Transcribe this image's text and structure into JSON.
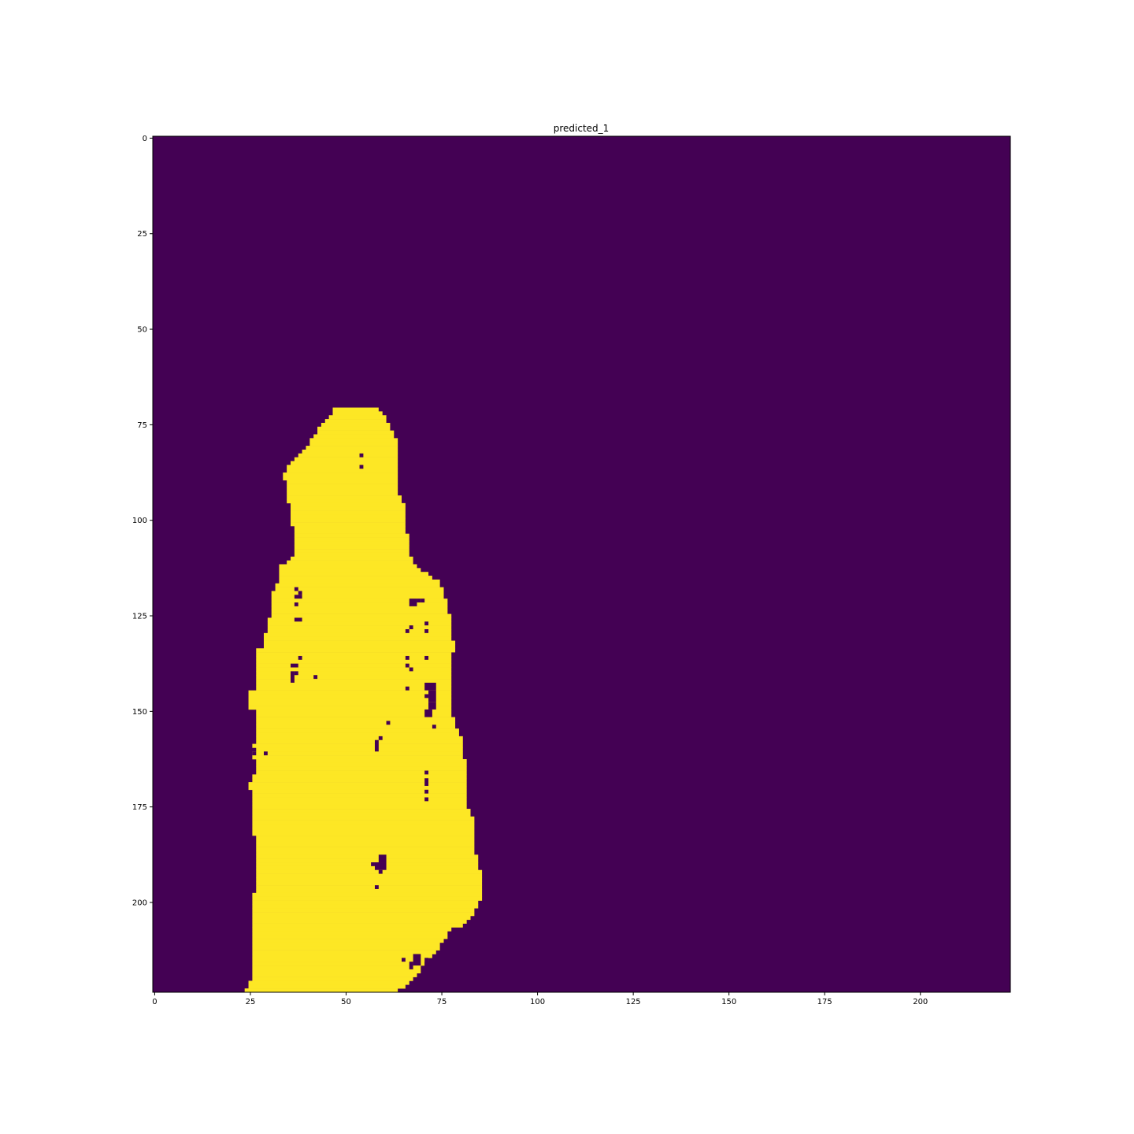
{
  "chart_data": {
    "type": "heatmap",
    "title": "predicted_1",
    "xlabel": "",
    "ylabel": "",
    "image_size": [
      224,
      224
    ],
    "xlim": [
      -0.5,
      223.5
    ],
    "ylim": [
      223.5,
      -0.5
    ],
    "x_ticks": [
      0,
      25,
      50,
      75,
      100,
      125,
      150,
      175,
      200
    ],
    "y_ticks": [
      0,
      25,
      50,
      75,
      100,
      125,
      150,
      175,
      200
    ],
    "colormap": "viridis",
    "colors": {
      "background": "#440154",
      "foreground": "#fde725"
    },
    "grid": false,
    "mask_rows": [
      [
        71,
        47,
        58
      ],
      [
        72,
        47,
        59
      ],
      [
        73,
        46,
        60
      ],
      [
        74,
        45,
        60
      ],
      [
        75,
        44,
        61
      ],
      [
        76,
        43,
        61
      ],
      [
        77,
        43,
        62
      ],
      [
        78,
        42,
        62
      ],
      [
        79,
        41,
        63
      ],
      [
        80,
        41,
        63
      ],
      [
        81,
        40,
        63
      ],
      [
        82,
        39,
        63
      ],
      [
        83,
        38,
        63
      ],
      [
        84,
        37,
        63
      ],
      [
        85,
        36,
        63
      ],
      [
        86,
        35,
        63
      ],
      [
        87,
        35,
        63
      ],
      [
        88,
        34,
        63
      ],
      [
        89,
        34,
        63
      ],
      [
        90,
        35,
        63
      ],
      [
        91,
        35,
        63
      ],
      [
        92,
        35,
        63
      ],
      [
        93,
        35,
        63
      ],
      [
        94,
        35,
        64
      ],
      [
        95,
        35,
        64
      ],
      [
        96,
        36,
        65
      ],
      [
        97,
        36,
        65
      ],
      [
        98,
        36,
        65
      ],
      [
        99,
        36,
        65
      ],
      [
        100,
        36,
        65
      ],
      [
        101,
        36,
        65
      ],
      [
        102,
        37,
        65
      ],
      [
        103,
        37,
        65
      ],
      [
        104,
        37,
        66
      ],
      [
        105,
        37,
        66
      ],
      [
        106,
        37,
        66
      ],
      [
        107,
        37,
        66
      ],
      [
        108,
        37,
        66
      ],
      [
        109,
        37,
        66
      ],
      [
        110,
        36,
        67
      ],
      [
        111,
        35,
        67
      ],
      [
        112,
        33,
        68
      ],
      [
        113,
        33,
        69
      ],
      [
        114,
        33,
        71
      ],
      [
        115,
        33,
        72
      ],
      [
        116,
        33,
        74
      ],
      [
        117,
        32,
        74
      ],
      [
        118,
        32,
        75
      ],
      [
        119,
        31,
        75
      ],
      [
        120,
        31,
        75
      ],
      [
        121,
        31,
        76
      ],
      [
        122,
        31,
        76
      ],
      [
        123,
        31,
        76
      ],
      [
        124,
        31,
        76
      ],
      [
        125,
        31,
        77
      ],
      [
        126,
        30,
        77
      ],
      [
        127,
        30,
        77
      ],
      [
        128,
        30,
        77
      ],
      [
        129,
        30,
        77
      ],
      [
        130,
        29,
        77
      ],
      [
        131,
        29,
        77
      ],
      [
        132,
        29,
        78
      ],
      [
        133,
        29,
        78
      ],
      [
        134,
        27,
        78
      ],
      [
        135,
        27,
        77
      ],
      [
        136,
        27,
        77
      ],
      [
        137,
        27,
        77
      ],
      [
        138,
        27,
        77
      ],
      [
        139,
        27,
        77
      ],
      [
        140,
        27,
        77
      ],
      [
        141,
        27,
        77
      ],
      [
        142,
        27,
        77
      ],
      [
        143,
        27,
        77
      ],
      [
        144,
        27,
        77
      ],
      [
        145,
        25,
        77
      ],
      [
        146,
        25,
        77
      ],
      [
        147,
        25,
        77
      ],
      [
        148,
        25,
        77
      ],
      [
        149,
        25,
        77
      ],
      [
        150,
        27,
        77
      ],
      [
        151,
        27,
        77
      ],
      [
        152,
        27,
        78
      ],
      [
        153,
        27,
        78
      ],
      [
        154,
        27,
        78
      ],
      [
        155,
        27,
        79
      ],
      [
        156,
        27,
        79
      ],
      [
        157,
        27,
        80
      ],
      [
        158,
        27,
        80
      ],
      [
        159,
        26,
        80
      ],
      [
        160,
        27,
        80
      ],
      [
        161,
        26,
        80
      ],
      [
        162,
        26,
        80
      ],
      [
        163,
        27,
        81
      ],
      [
        164,
        27,
        81
      ],
      [
        165,
        27,
        81
      ],
      [
        166,
        27,
        81
      ],
      [
        167,
        26,
        81
      ],
      [
        168,
        26,
        81
      ],
      [
        169,
        25,
        81
      ],
      [
        170,
        25,
        81
      ],
      [
        171,
        26,
        81
      ],
      [
        172,
        26,
        81
      ],
      [
        173,
        26,
        81
      ],
      [
        174,
        26,
        81
      ],
      [
        175,
        26,
        81
      ],
      [
        176,
        26,
        82
      ],
      [
        177,
        26,
        82
      ],
      [
        178,
        26,
        83
      ],
      [
        179,
        26,
        83
      ],
      [
        180,
        26,
        83
      ],
      [
        181,
        26,
        83
      ],
      [
        182,
        26,
        83
      ],
      [
        183,
        27,
        83
      ],
      [
        184,
        27,
        83
      ],
      [
        185,
        27,
        83
      ],
      [
        186,
        27,
        83
      ],
      [
        187,
        27,
        83
      ],
      [
        188,
        27,
        84
      ],
      [
        189,
        27,
        84
      ],
      [
        190,
        27,
        84
      ],
      [
        191,
        27,
        84
      ],
      [
        192,
        27,
        85
      ],
      [
        193,
        27,
        85
      ],
      [
        194,
        27,
        85
      ],
      [
        195,
        27,
        85
      ],
      [
        196,
        27,
        85
      ],
      [
        197,
        27,
        85
      ],
      [
        198,
        26,
        85
      ],
      [
        199,
        26,
        85
      ],
      [
        200,
        26,
        84
      ],
      [
        201,
        26,
        84
      ],
      [
        202,
        26,
        83
      ],
      [
        203,
        26,
        83
      ],
      [
        204,
        26,
        82
      ],
      [
        205,
        26,
        81
      ],
      [
        206,
        26,
        80
      ],
      [
        207,
        26,
        77
      ],
      [
        208,
        26,
        76
      ],
      [
        209,
        26,
        76
      ],
      [
        210,
        26,
        75
      ],
      [
        211,
        26,
        74
      ],
      [
        212,
        26,
        74
      ],
      [
        213,
        26,
        73
      ],
      [
        214,
        26,
        72
      ],
      [
        215,
        26,
        71
      ],
      [
        216,
        26,
        70
      ],
      [
        217,
        26,
        69
      ],
      [
        218,
        26,
        69
      ],
      [
        219,
        26,
        68
      ],
      [
        220,
        26,
        67
      ],
      [
        221,
        25,
        66
      ],
      [
        222,
        25,
        65
      ],
      [
        223,
        24,
        63
      ]
    ],
    "mask_holes": [
      [
        54,
        83,
        1,
        1
      ],
      [
        54,
        86,
        1,
        1
      ],
      [
        37,
        118,
        1,
        1
      ],
      [
        38,
        119,
        1,
        1
      ],
      [
        37,
        120,
        2,
        1
      ],
      [
        37,
        122,
        1,
        1
      ],
      [
        67,
        121,
        2,
        2
      ],
      [
        69,
        121,
        1,
        1
      ],
      [
        70,
        121,
        1,
        1
      ],
      [
        37,
        126,
        2,
        1
      ],
      [
        71,
        127,
        1,
        1
      ],
      [
        67,
        128,
        1,
        1
      ],
      [
        66,
        129,
        1,
        1
      ],
      [
        71,
        129,
        1,
        1
      ],
      [
        66,
        136,
        1,
        1
      ],
      [
        71,
        136,
        1,
        1
      ],
      [
        38,
        136,
        1,
        1
      ],
      [
        36,
        138,
        2,
        1
      ],
      [
        66,
        138,
        1,
        1
      ],
      [
        67,
        139,
        1,
        1
      ],
      [
        36,
        140,
        1,
        3
      ],
      [
        37,
        140,
        1,
        1
      ],
      [
        42,
        141,
        1,
        1
      ],
      [
        66,
        144,
        1,
        1
      ],
      [
        71,
        143,
        3,
        2
      ],
      [
        72,
        145,
        2,
        3
      ],
      [
        71,
        146,
        1,
        1
      ],
      [
        72,
        148,
        2,
        2
      ],
      [
        71,
        150,
        2,
        2
      ],
      [
        73,
        154,
        1,
        1
      ],
      [
        61,
        153,
        1,
        1
      ],
      [
        59,
        157,
        1,
        1
      ],
      [
        58,
        158,
        1,
        3
      ],
      [
        26,
        161,
        1,
        1
      ],
      [
        29,
        161,
        1,
        1
      ],
      [
        71,
        166,
        1,
        1
      ],
      [
        71,
        168,
        1,
        2
      ],
      [
        71,
        171,
        1,
        1
      ],
      [
        71,
        173,
        1,
        1
      ],
      [
        59,
        188,
        2,
        2
      ],
      [
        58,
        190,
        3,
        2
      ],
      [
        57,
        190,
        1,
        1
      ],
      [
        59,
        192,
        1,
        1
      ],
      [
        58,
        196,
        1,
        1
      ],
      [
        65,
        215,
        1,
        1
      ],
      [
        68,
        214,
        2,
        3
      ],
      [
        71,
        215,
        1,
        2
      ],
      [
        67,
        216,
        1,
        2
      ],
      [
        72,
        216,
        1,
        1
      ]
    ]
  }
}
